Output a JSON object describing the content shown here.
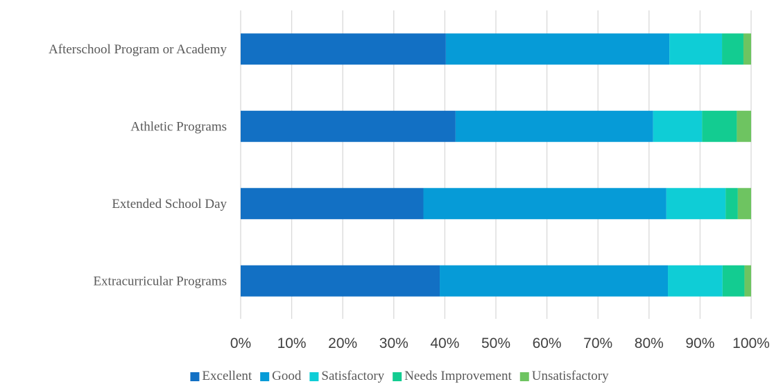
{
  "chart_data": {
    "type": "bar",
    "orientation": "horizontal",
    "stacked": true,
    "percent_stacked": true,
    "categories": [
      "Afterschool Program or Academy",
      "Athletic Programs",
      "Extended School Day",
      "Extracurricular Programs"
    ],
    "series": [
      {
        "name": "Excellent",
        "color": "#1270c4",
        "values": [
          40.2,
          42.1,
          35.8,
          39.0
        ]
      },
      {
        "name": "Good",
        "color": "#069bd7",
        "values": [
          43.8,
          38.7,
          47.6,
          44.7
        ]
      },
      {
        "name": "Satisfactory",
        "color": "#0fcdd6",
        "values": [
          10.3,
          9.6,
          11.6,
          10.7
        ]
      },
      {
        "name": "Needs Improvement",
        "color": "#13cc91",
        "values": [
          4.2,
          6.8,
          2.4,
          4.3
        ]
      },
      {
        "name": "Unsatisfactory",
        "color": "#6ec461",
        "values": [
          1.5,
          2.8,
          2.6,
          1.3
        ]
      }
    ],
    "x_ticks": [
      "0%",
      "10%",
      "20%",
      "30%",
      "40%",
      "50%",
      "60%",
      "70%",
      "80%",
      "90%",
      "100%"
    ],
    "xlim": [
      0,
      100
    ],
    "grid": "vertical",
    "legend_position": "bottom",
    "title": "",
    "xlabel": "",
    "ylabel": ""
  }
}
